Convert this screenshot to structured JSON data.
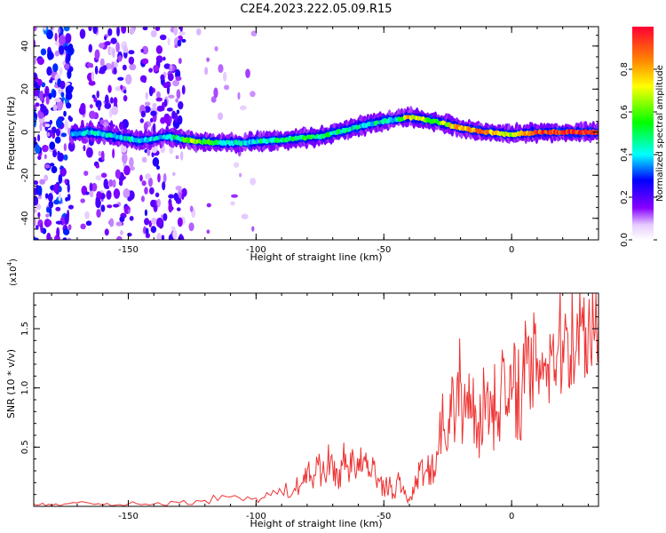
{
  "title": "C2E4.2023.222.05.09.R15",
  "colors": {
    "frame": "#000000",
    "snr_line": "#ee3333",
    "background": "#ffffff"
  },
  "colorbar": {
    "label": "Normalized spectral amplitude",
    "ticks": [
      "0.0",
      "0.2",
      "0.4",
      "0.6",
      "0.8"
    ],
    "tick_values": [
      0.0,
      0.2,
      0.4,
      0.6,
      0.8
    ],
    "range": [
      0,
      1
    ],
    "colormap": "rainbow (white-violet-blue-cyan-green-yellow-orange-red)"
  },
  "chart_data": [
    {
      "type": "heatmap",
      "title": "C2E4.2023.222.05.09.R15",
      "xlabel": "Height of straight line (km)",
      "ylabel": "Frequency (Hz)",
      "xlim": [
        -187,
        34
      ],
      "ylim": [
        -50,
        49
      ],
      "x_ticks": [
        -150,
        -100,
        -50,
        0
      ],
      "x_tick_labels": [
        "-150",
        "-100",
        "-50",
        "0"
      ],
      "y_ticks": [
        -40,
        -20,
        0,
        20,
        40
      ],
      "y_tick_labels": [
        "-40",
        "-20",
        "0",
        "20",
        "40"
      ],
      "grid": false,
      "ridge": {
        "x": [
          -172,
          -165,
          -155,
          -145,
          -135,
          -125,
          -115,
          -105,
          -95,
          -85,
          -75,
          -65,
          -55,
          -45,
          -40,
          -30,
          -20,
          -10,
          0,
          10,
          20,
          34
        ],
        "freq": [
          -1,
          0,
          -2,
          -4,
          -2,
          -4,
          -5,
          -5,
          -4,
          -3,
          -2,
          1,
          4,
          6,
          7,
          5,
          2,
          0,
          -1,
          0,
          0,
          0
        ],
        "peak_amplitude": [
          0.35,
          0.45,
          0.45,
          0.45,
          0.4,
          0.7,
          0.5,
          0.45,
          0.5,
          0.55,
          0.55,
          0.5,
          0.45,
          0.5,
          0.8,
          0.65,
          0.85,
          0.9,
          0.7,
          0.95,
          1.0,
          1.0
        ]
      }
    },
    {
      "type": "line",
      "xlabel": "Height of straight line (km)",
      "ylabel": "SNR (10 * v/v)",
      "y_multiplier_label": "(x10",
      "y_multiplier_exp": "4",
      "y_multiplier_close": ")",
      "xlim": [
        -187,
        34
      ],
      "ylim": [
        0,
        1.8
      ],
      "x_ticks": [
        -150,
        -100,
        -50,
        0
      ],
      "x_tick_labels": [
        "-150",
        "-100",
        "-50",
        "0"
      ],
      "y_ticks": [
        0.5,
        1.0,
        1.5
      ],
      "y_tick_labels": [
        "0.5",
        "1.0",
        "1.5"
      ],
      "grid": false,
      "series": [
        {
          "color": "#ee3333",
          "x": [
            -187,
            -180,
            -170,
            -160,
            -150,
            -140,
            -130,
            -120,
            -110,
            -100,
            -95,
            -90,
            -85,
            -82,
            -80,
            -78,
            -76,
            -74,
            -72,
            -70,
            -68,
            -66,
            -64,
            -62,
            -60,
            -58,
            -56,
            -54,
            -52,
            -50,
            -48,
            -46,
            -44,
            -42,
            -40,
            -38,
            -36,
            -34,
            -32,
            -30,
            -28,
            -26,
            -24,
            -22,
            -20,
            -18,
            -16,
            -14,
            -12,
            -10,
            -8,
            -6,
            -4,
            -2,
            0,
            2,
            4,
            6,
            8,
            10,
            12,
            14,
            16,
            18,
            20,
            22,
            24,
            26,
            28,
            30,
            32,
            34
          ],
          "values": [
            0.02,
            0.01,
            0.03,
            0.01,
            0.02,
            0.02,
            0.03,
            0.05,
            0.08,
            0.07,
            0.1,
            0.12,
            0.15,
            0.2,
            0.3,
            0.2,
            0.38,
            0.28,
            0.36,
            0.34,
            0.22,
            0.38,
            0.33,
            0.44,
            0.3,
            0.4,
            0.25,
            0.35,
            0.22,
            0.15,
            0.18,
            0.1,
            0.22,
            0.1,
            0.05,
            0.15,
            0.3,
            0.28,
            0.35,
            0.25,
            0.8,
            0.55,
            0.95,
            0.7,
            1.05,
            0.75,
            0.95,
            0.8,
            0.7,
            0.95,
            0.9,
            0.8,
            1.1,
            0.85,
            0.9,
            1.05,
            0.95,
            1.2,
            1.1,
            1.25,
            1.3,
            1.2,
            1.35,
            1.3,
            1.4,
            1.45,
            1.42,
            1.5,
            1.48,
            1.52,
            1.55,
            1.57
          ]
        }
      ]
    }
  ]
}
